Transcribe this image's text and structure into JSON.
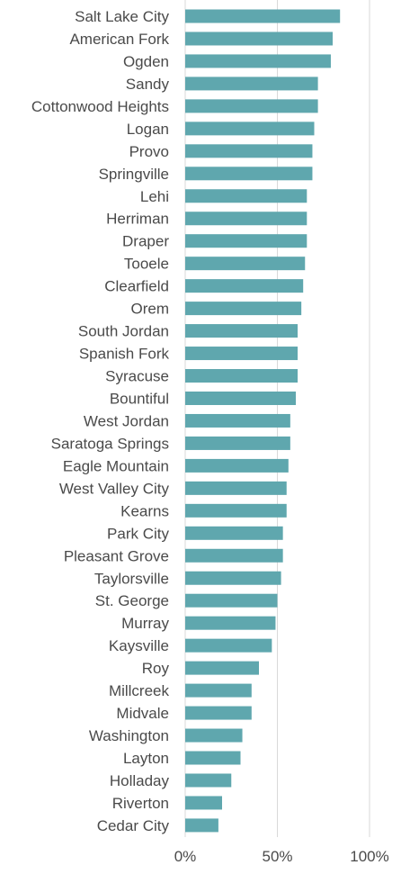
{
  "chart_data": {
    "type": "bar",
    "orientation": "horizontal",
    "categories": [
      "Salt Lake City",
      "American Fork",
      "Ogden",
      "Sandy",
      "Cottonwood Heights",
      "Logan",
      "Provo",
      "Springville",
      "Lehi",
      "Herriman",
      "Draper",
      "Tooele",
      "Clearfield",
      "Orem",
      "South Jordan",
      "Spanish Fork",
      "Syracuse",
      "Bountiful",
      "West Jordan",
      "Saratoga Springs",
      "Eagle Mountain",
      "West Valley City",
      "Kearns",
      "Park City",
      "Pleasant Grove",
      "Taylorsville",
      "St. George",
      "Murray",
      "Kaysville",
      "Roy",
      "Millcreek",
      "Midvale",
      "Washington",
      "Layton",
      "Holladay",
      "Riverton",
      "Cedar City"
    ],
    "values": [
      0.84,
      0.8,
      0.79,
      0.72,
      0.72,
      0.7,
      0.69,
      0.69,
      0.66,
      0.66,
      0.66,
      0.65,
      0.64,
      0.63,
      0.61,
      0.61,
      0.61,
      0.6,
      0.57,
      0.57,
      0.56,
      0.55,
      0.55,
      0.53,
      0.53,
      0.52,
      0.5,
      0.49,
      0.47,
      0.4,
      0.36,
      0.36,
      0.31,
      0.3,
      0.25,
      0.2,
      0.18
    ],
    "xlim": [
      0,
      1
    ],
    "xticks": [
      {
        "value": 0,
        "label": "0%"
      },
      {
        "value": 0.5,
        "label": "50%"
      },
      {
        "value": 1,
        "label": "100%"
      }
    ],
    "bar_color": "#5fa7ae",
    "grid": true,
    "title": "",
    "xlabel": "",
    "ylabel": ""
  }
}
